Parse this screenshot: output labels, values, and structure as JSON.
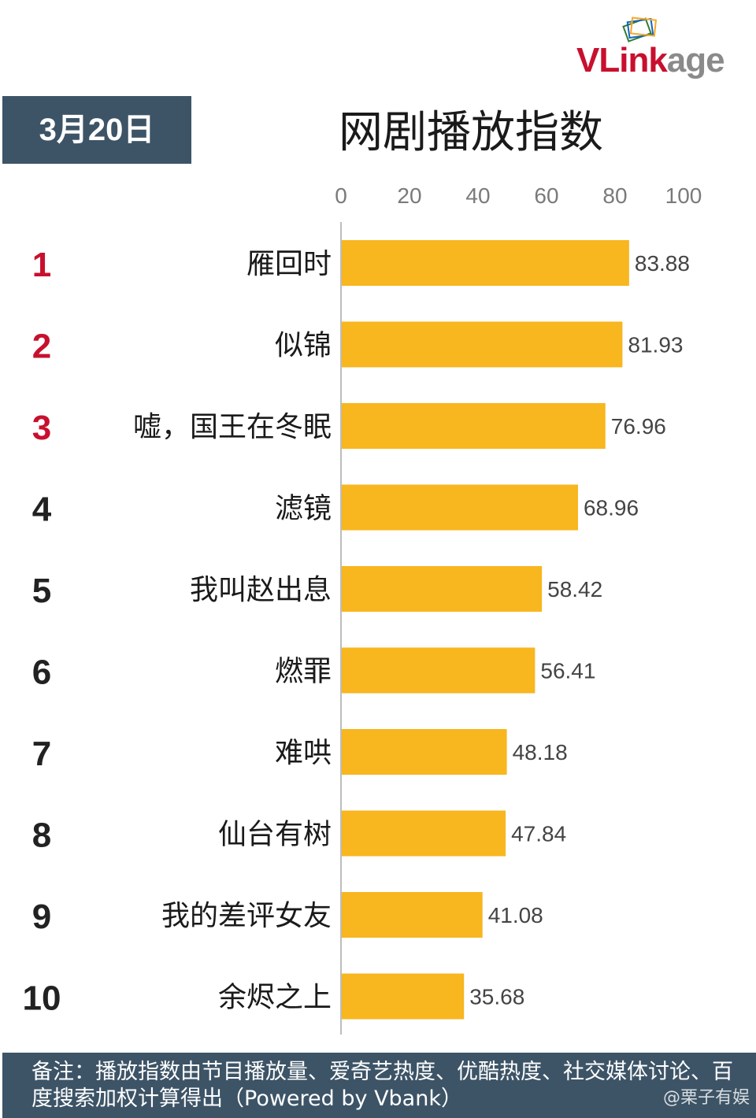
{
  "logo": {
    "text_a": "VLink",
    "text_b": "age"
  },
  "date_badge": "3月20日",
  "title": "网剧播放指数",
  "colors": {
    "bar": "#f8b61f",
    "rank_top": "#c8102e",
    "rank_other": "#222222",
    "badge_bg": "#3d5467"
  },
  "chart_data": {
    "type": "bar",
    "orientation": "horizontal",
    "title": "网剧播放指数",
    "xlim": [
      0,
      100
    ],
    "x_ticks": [
      0,
      20,
      40,
      60,
      80,
      100
    ],
    "grid": false,
    "ranks": [
      "1",
      "2",
      "3",
      "4",
      "5",
      "6",
      "7",
      "8",
      "9",
      "10"
    ],
    "categories": [
      "雁回时",
      "似锦",
      "嘘，国王在冬眠",
      "滤镜",
      "我叫赵出息",
      "燃罪",
      "难哄",
      "仙台有树",
      "我的差评女友",
      "余烬之上"
    ],
    "values": [
      83.88,
      81.93,
      76.96,
      68.96,
      58.42,
      56.41,
      48.18,
      47.84,
      41.08,
      35.68
    ],
    "value_labels": [
      "83.88",
      "81.93",
      "76.96",
      "68.96",
      "58.42",
      "56.41",
      "48.18",
      "47.84",
      "41.08",
      "35.68"
    ]
  },
  "footer": {
    "note": "备注：播放指数由节目播放量、爱奇艺热度、优酷热度、社交媒体讨论、百度搜索加权计算得出（Powered by Vbank）",
    "watermark": "@栗子有娱"
  }
}
